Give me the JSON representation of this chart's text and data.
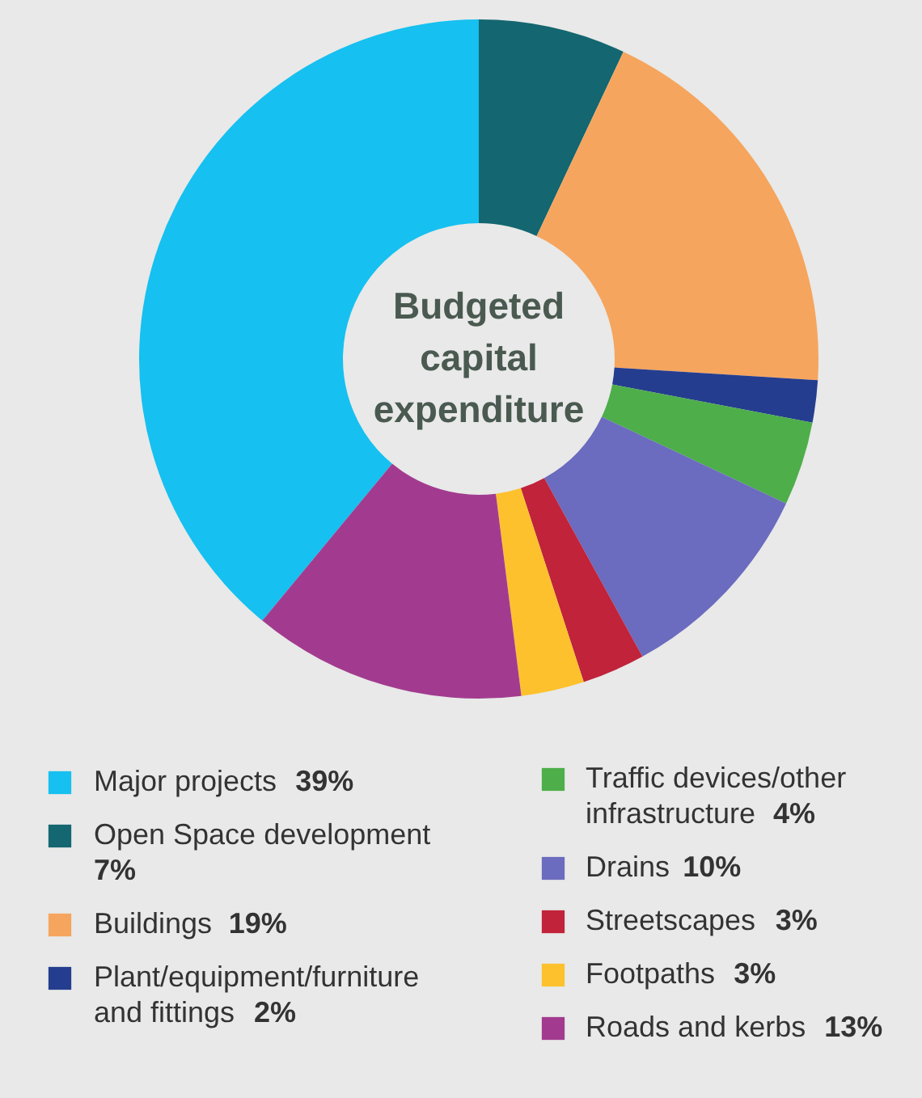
{
  "chart_data": {
    "type": "donut",
    "title": "Budgeted capital expenditure",
    "categories": [
      "Major projects",
      "Open Space development",
      "Buildings",
      "Plant/equipment/furniture and fittings",
      "Traffic devices/other infrastructure",
      "Drains",
      "Streetscapes",
      "Footpaths",
      "Roads and kerbs"
    ],
    "values": [
      39,
      7,
      19,
      2,
      4,
      10,
      3,
      3,
      13
    ],
    "value_labels": [
      "39%",
      "7%",
      "19%",
      "2%",
      "4%",
      "10%",
      "3%",
      "3%",
      "13%"
    ],
    "colors": [
      "#16c0f0",
      "#146670",
      "#f6a55e",
      "#253d8f",
      "#4dae4a",
      "#6b6bbf",
      "#c0233a",
      "#fdc12e",
      "#a23b8f"
    ],
    "legend": "bottom"
  }
}
